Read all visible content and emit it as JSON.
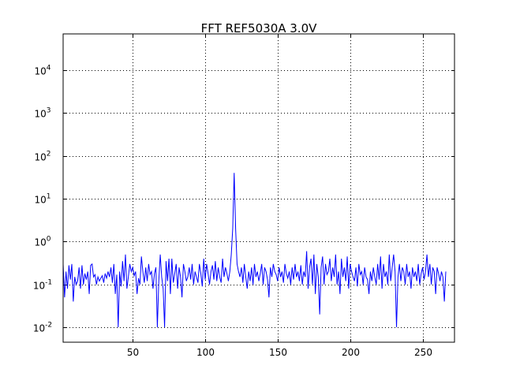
{
  "chart_data": {
    "type": "line",
    "title": "FFT REF5030A 3.0V",
    "xlabel": "",
    "ylabel": "",
    "xlim": [
      2,
      272
    ],
    "ylim": [
      0.0045,
      70000
    ],
    "yscale": "log",
    "grid": true,
    "line_color": "#0000ff",
    "x_ticks": [
      {
        "value": 50,
        "label": "50"
      },
      {
        "value": 100,
        "label": "100"
      },
      {
        "value": 150,
        "label": "150"
      },
      {
        "value": 200,
        "label": "200"
      },
      {
        "value": 250,
        "label": "250"
      }
    ],
    "y_ticks": [
      {
        "value": 0.01,
        "base": "10",
        "exp": "-2"
      },
      {
        "value": 0.1,
        "base": "10",
        "exp": "-1"
      },
      {
        "value": 1,
        "base": "10",
        "exp": "0"
      },
      {
        "value": 10,
        "base": "10",
        "exp": "1"
      },
      {
        "value": 100,
        "base": "10",
        "exp": "2"
      },
      {
        "value": 1000,
        "base": "10",
        "exp": "3"
      },
      {
        "value": 10000,
        "base": "10",
        "exp": "4"
      }
    ],
    "series": [
      {
        "x_start": 2,
        "x_step": 1,
        "values": [
          0.3,
          0.05,
          0.2,
          0.08,
          0.28,
          0.13,
          0.3,
          0.04,
          0.15,
          0.1,
          0.12,
          0.25,
          0.08,
          0.28,
          0.1,
          0.18,
          0.13,
          0.2,
          0.06,
          0.28,
          0.3,
          0.15,
          0.17,
          0.1,
          0.15,
          0.12,
          0.14,
          0.16,
          0.11,
          0.18,
          0.14,
          0.2,
          0.15,
          0.25,
          0.11,
          0.3,
          0.06,
          0.17,
          0.01,
          0.2,
          0.09,
          0.35,
          0.12,
          0.5,
          0.08,
          0.15,
          0.3,
          0.2,
          0.25,
          0.16,
          0.2,
          0.06,
          0.14,
          0.1,
          0.45,
          0.2,
          0.11,
          0.25,
          0.12,
          0.3,
          0.17,
          0.2,
          0.08,
          0.18,
          0.25,
          0.01,
          0.12,
          0.5,
          0.15,
          0.08,
          0.01,
          0.35,
          0.12,
          0.4,
          0.06,
          0.4,
          0.11,
          0.18,
          0.3,
          0.08,
          0.25,
          0.15,
          0.05,
          0.3,
          0.2,
          0.12,
          0.15,
          0.25,
          0.13,
          0.3,
          0.1,
          0.2,
          0.15,
          0.11,
          0.3,
          0.18,
          0.09,
          0.4,
          0.13,
          0.3,
          0.18,
          0.1,
          0.2,
          0.28,
          0.13,
          0.35,
          0.12,
          0.25,
          0.15,
          0.11,
          0.4,
          0.15,
          0.25,
          0.18,
          0.12,
          0.2,
          0.5,
          2,
          40,
          2,
          0.3,
          0.2,
          0.15,
          0.25,
          0.11,
          0.3,
          0.15,
          0.08,
          0.2,
          0.12,
          0.25,
          0.1,
          0.3,
          0.15,
          0.2,
          0.12,
          0.18,
          0.3,
          0.1,
          0.25,
          0.2,
          0.13,
          0.05,
          0.25,
          0.15,
          0.3,
          0.2,
          0.17,
          0.12,
          0.25,
          0.15,
          0.2,
          0.11,
          0.3,
          0.18,
          0.14,
          0.2,
          0.1,
          0.25,
          0.13,
          0.3,
          0.15,
          0.2,
          0.12,
          0.28,
          0.1,
          0.2,
          0.15,
          0.6,
          0.08,
          0.25,
          0.4,
          0.1,
          0.5,
          0.06,
          0.3,
          0.15,
          0.02,
          0.25,
          0.45,
          0.1,
          0.3,
          0.17,
          0.2,
          0.4,
          0.12,
          0.25,
          0.15,
          0.5,
          0.1,
          0.2,
          0.06,
          0.4,
          0.15,
          0.25,
          0.12,
          0.45,
          0.08,
          0.3,
          0.2,
          0.15,
          0.12,
          0.25,
          0.09,
          0.3,
          0.17,
          0.2,
          0.1,
          0.25,
          0.15,
          0.13,
          0.06,
          0.2,
          0.12,
          0.25,
          0.15,
          0.1,
          0.3,
          0.13,
          0.45,
          0.08,
          0.3,
          0.15,
          0.2,
          0.1,
          0.5,
          0.12,
          0.25,
          0.5,
          0.2,
          0.01,
          0.15,
          0.3,
          0.12,
          0.25,
          0.2,
          0.1,
          0.3,
          0.15,
          0.2,
          0.08,
          0.25,
          0.15,
          0.2,
          0.12,
          0.3,
          0.1,
          0.18,
          0.25,
          0.13,
          0.2,
          0.5,
          0.15,
          0.3,
          0.1,
          0.25,
          0.2,
          0.06,
          0.25,
          0.18,
          0.12,
          0.2,
          0.15,
          0.04,
          0.2
        ]
      }
    ]
  }
}
